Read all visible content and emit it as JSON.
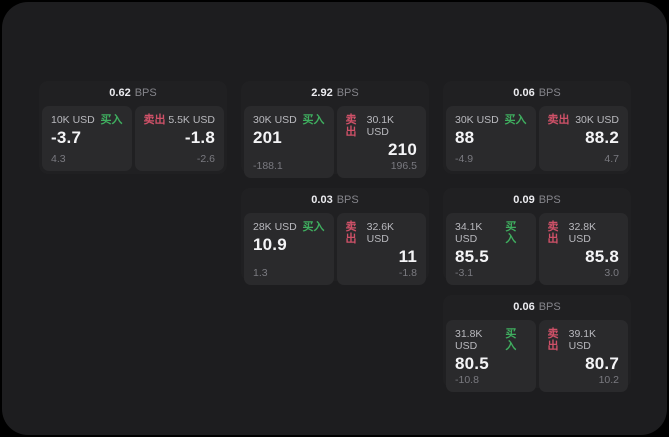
{
  "window": {
    "background": "#000000",
    "panel_background": "#1d1d1f"
  },
  "labels": {
    "buy": "买入",
    "sell": "卖出",
    "bps": "BPS"
  },
  "colors": {
    "buy_green": "#3fae5f",
    "sell_red": "#cf5168",
    "card_bg": "#202022",
    "tile_bg": "#2a2a2c"
  },
  "cards": [
    {
      "bps": "0.62",
      "buy": {
        "amount": "10K USD",
        "value": "-3.7",
        "delta": "4.3"
      },
      "sell": {
        "amount": "5.5K USD",
        "value": "-1.8",
        "delta": "-2.6"
      }
    },
    {
      "bps": "2.92",
      "buy": {
        "amount": "30K USD",
        "value": "201",
        "delta": "-188.1"
      },
      "sell": {
        "amount": "30.1K USD",
        "value": "210",
        "delta": "196.5"
      }
    },
    {
      "bps": "0.06",
      "buy": {
        "amount": "30K USD",
        "value": "88",
        "delta": "-4.9"
      },
      "sell": {
        "amount": "30K USD",
        "value": "88.2",
        "delta": "4.7"
      }
    },
    {
      "bps": "0.03",
      "buy": {
        "amount": "28K USD",
        "value": "10.9",
        "delta": "1.3"
      },
      "sell": {
        "amount": "32.6K USD",
        "value": "11",
        "delta": "-1.8"
      }
    },
    {
      "bps": "0.09",
      "buy": {
        "amount": "34.1K USD",
        "value": "85.5",
        "delta": "-3.1"
      },
      "sell": {
        "amount": "32.8K USD",
        "value": "85.8",
        "delta": "3.0"
      }
    },
    {
      "bps": "0.06",
      "buy": {
        "amount": "31.8K USD",
        "value": "80.5",
        "delta": "-10.8"
      },
      "sell": {
        "amount": "39.1K USD",
        "value": "80.7",
        "delta": "10.2"
      }
    }
  ]
}
